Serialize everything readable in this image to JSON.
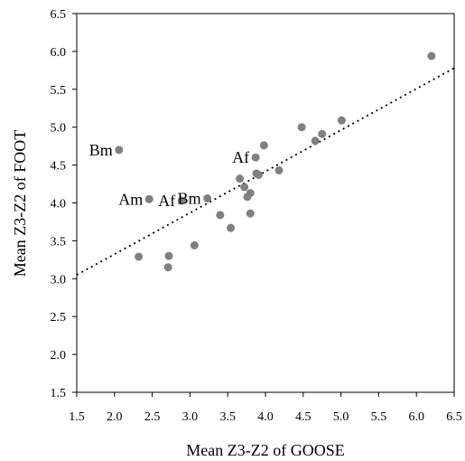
{
  "chart_data": {
    "type": "scatter",
    "title": "",
    "xlabel": "Mean Z3-Z2 of GOOSE",
    "ylabel": "Mean Z3-Z2 of FOOT",
    "xlim": [
      1.5,
      6.5
    ],
    "ylim": [
      1.5,
      6.5
    ],
    "x_ticks": [
      "1.5",
      "2.0",
      "2.5",
      "3.0",
      "3.5",
      "4.0",
      "4.5",
      "5.0",
      "5.5",
      "6.0",
      "6.5"
    ],
    "y_ticks": [
      "1.5",
      "2.0",
      "2.5",
      "3.0",
      "3.5",
      "4.0",
      "4.5",
      "5.0",
      "5.5",
      "6.0",
      "6.5"
    ],
    "grid": false,
    "legend": "none",
    "point_color": "#808080",
    "trendline": {
      "style": "dotted",
      "color": "#000000",
      "y_at_xmin": 3.05,
      "y_at_xmax": 5.78
    },
    "points": [
      {
        "x": 2.06,
        "y": 4.7,
        "label": "Bm"
      },
      {
        "x": 2.46,
        "y": 4.05,
        "label": "Am"
      },
      {
        "x": 2.89,
        "y": 4.03,
        "label": "Af"
      },
      {
        "x": 3.23,
        "y": 4.06,
        "label": "Bm"
      },
      {
        "x": 3.87,
        "y": 4.6,
        "label": "Af"
      },
      {
        "x": 2.32,
        "y": 3.29,
        "label": ""
      },
      {
        "x": 2.72,
        "y": 3.3,
        "label": ""
      },
      {
        "x": 2.71,
        "y": 3.15,
        "label": ""
      },
      {
        "x": 3.06,
        "y": 3.44,
        "label": ""
      },
      {
        "x": 3.4,
        "y": 3.84,
        "label": ""
      },
      {
        "x": 3.54,
        "y": 3.67,
        "label": ""
      },
      {
        "x": 3.66,
        "y": 4.32,
        "label": ""
      },
      {
        "x": 3.72,
        "y": 4.21,
        "label": ""
      },
      {
        "x": 3.76,
        "y": 4.08,
        "label": ""
      },
      {
        "x": 3.8,
        "y": 4.13,
        "label": ""
      },
      {
        "x": 3.8,
        "y": 3.86,
        "label": ""
      },
      {
        "x": 3.88,
        "y": 4.39,
        "label": ""
      },
      {
        "x": 3.91,
        "y": 4.37,
        "label": ""
      },
      {
        "x": 3.98,
        "y": 4.76,
        "label": ""
      },
      {
        "x": 4.18,
        "y": 4.43,
        "label": ""
      },
      {
        "x": 4.48,
        "y": 5.0,
        "label": ""
      },
      {
        "x": 4.66,
        "y": 4.82,
        "label": ""
      },
      {
        "x": 4.75,
        "y": 4.91,
        "label": ""
      },
      {
        "x": 5.01,
        "y": 5.09,
        "label": ""
      },
      {
        "x": 6.2,
        "y": 5.94,
        "label": ""
      }
    ]
  }
}
